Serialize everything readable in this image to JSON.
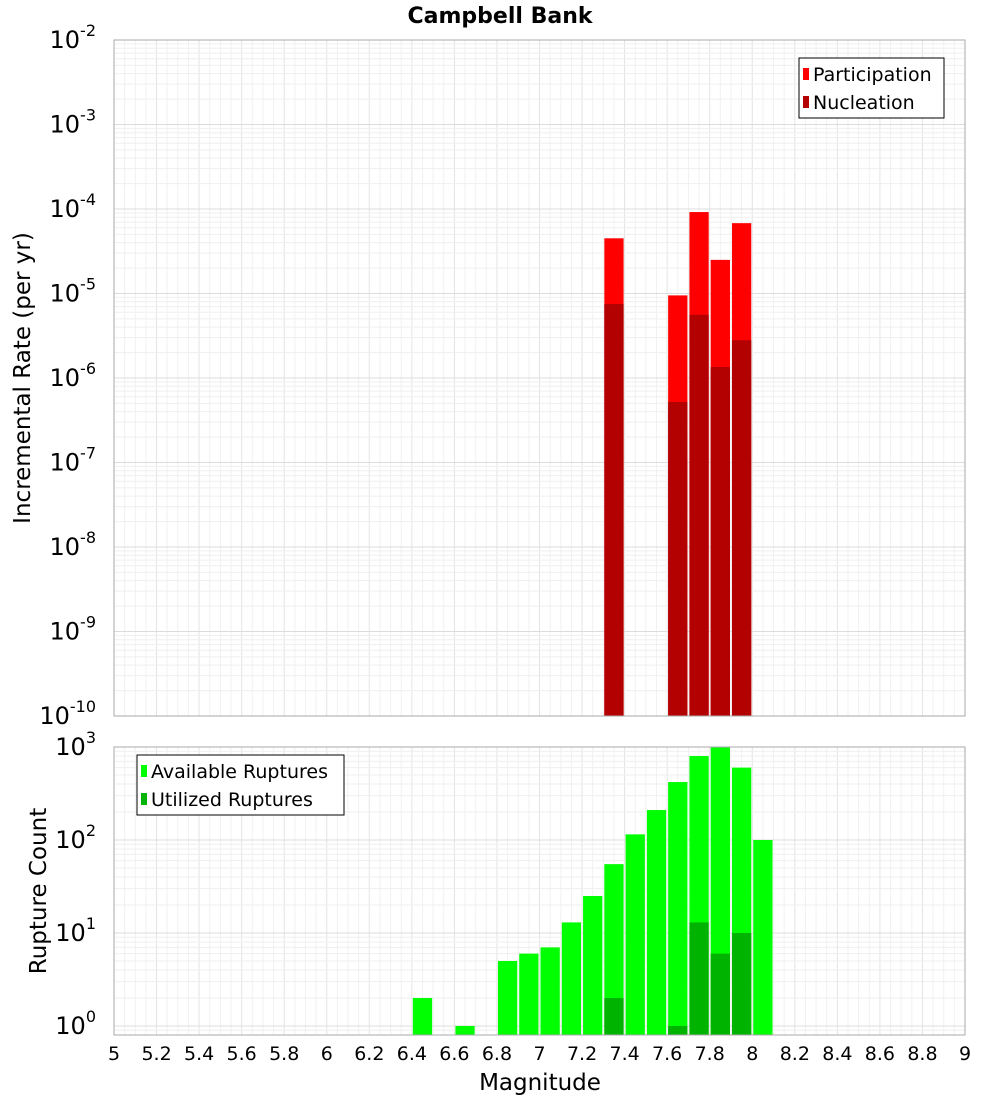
{
  "chart_data": {
    "title": "Campbell Bank",
    "xlabel": "Magnitude",
    "xlim": [
      5,
      9
    ],
    "x_ticks": [
      "5",
      "5.2",
      "5.4",
      "5.6",
      "5.8",
      "6",
      "6.2",
      "6.4",
      "6.6",
      "6.8",
      "7",
      "7.2",
      "7.4",
      "7.6",
      "7.8",
      "8",
      "8.2",
      "8.4",
      "8.6",
      "8.8",
      "9"
    ],
    "bin_width": 0.1,
    "panels": [
      {
        "type": "bar",
        "scale": "log",
        "ylabel": "Incremental Rate (per yr)",
        "ylim": [
          1e-10,
          0.01
        ],
        "y_ticks": [
          {
            "base": "10",
            "exp": "-2"
          },
          {
            "base": "10",
            "exp": "-3"
          },
          {
            "base": "10",
            "exp": "-4"
          },
          {
            "base": "10",
            "exp": "-5"
          },
          {
            "base": "10",
            "exp": "-6"
          },
          {
            "base": "10",
            "exp": "-7"
          },
          {
            "base": "10",
            "exp": "-8"
          },
          {
            "base": "10",
            "exp": "-9"
          },
          {
            "base": "10",
            "exp": "-10"
          }
        ],
        "legend_position": "top-right",
        "series": [
          {
            "name": "Participation",
            "color": "#ff0000",
            "x": [
              7.35,
              7.65,
              7.75,
              7.85,
              7.95
            ],
            "values": [
              4.5e-05,
              9.5e-06,
              9.2e-05,
              2.5e-05,
              6.8e-05
            ]
          },
          {
            "name": "Nucleation",
            "color": "#b30000",
            "x": [
              7.35,
              7.65,
              7.75,
              7.85,
              7.95
            ],
            "values": [
              7.5e-06,
              5.2e-07,
              5.6e-06,
              1.35e-06,
              2.8e-06
            ]
          }
        ]
      },
      {
        "type": "bar",
        "scale": "log",
        "ylabel": "Rupture Count",
        "ylim": [
          0.8,
          1000
        ],
        "y_ticks": [
          {
            "base": "10",
            "exp": "3"
          },
          {
            "base": "10",
            "exp": "2"
          },
          {
            "base": "10",
            "exp": "1"
          },
          {
            "base": "10",
            "exp": "0"
          }
        ],
        "legend_position": "top-left",
        "series": [
          {
            "name": "Available Ruptures",
            "color": "#00ff00",
            "x": [
              6.45,
              6.65,
              6.85,
              6.95,
              7.05,
              7.15,
              7.25,
              7.35,
              7.45,
              7.55,
              7.65,
              7.75,
              7.85,
              7.95,
              8.05
            ],
            "values": [
              2,
              1,
              5,
              6,
              7,
              13,
              25,
              55,
              115,
              210,
              420,
              800,
              1000,
              600,
              100
            ]
          },
          {
            "name": "Utilized Ruptures",
            "color": "#00b300",
            "x": [
              7.35,
              7.65,
              7.75,
              7.85,
              7.95
            ],
            "values": [
              2,
              1,
              13,
              6,
              10
            ]
          }
        ]
      }
    ]
  }
}
